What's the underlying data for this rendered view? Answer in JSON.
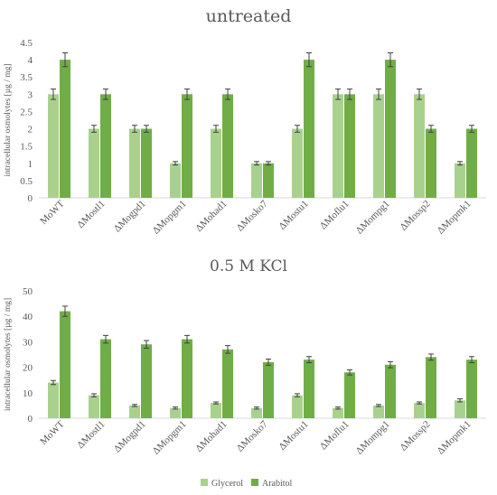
{
  "chart_data": [
    {
      "type": "bar",
      "title": "untreated",
      "ylabel": "intracellular osmolytes [µg / mg]",
      "ylim": [
        0,
        4.5
      ],
      "yticks": [
        "0",
        "0.5",
        "1",
        "1.5",
        "2",
        "2.5",
        "3",
        "3.5",
        "4",
        "4.5"
      ],
      "categories": [
        "MoWT",
        "ΔMostl1",
        "ΔMogpd1",
        "ΔMopgm1",
        "ΔMohad1",
        "ΔMosko7",
        "ΔMostu1",
        "ΔMoflu1",
        "ΔMompg1",
        "ΔMossp2",
        "ΔMopmk1"
      ],
      "series": [
        {
          "name": "Glycerol",
          "color": "#a9d18e",
          "values": [
            3,
            2,
            2,
            1,
            2,
            1,
            2,
            3,
            3,
            3,
            1
          ],
          "errors": [
            0.15,
            0.1,
            0.1,
            0.05,
            0.1,
            0.05,
            0.1,
            0.15,
            0.15,
            0.15,
            0.05
          ]
        },
        {
          "name": "Arabitol",
          "color": "#70ad47",
          "values": [
            4,
            3,
            2,
            3,
            3,
            1,
            4,
            3,
            4,
            2,
            2
          ],
          "errors": [
            0.2,
            0.15,
            0.1,
            0.15,
            0.15,
            0.05,
            0.2,
            0.15,
            0.2,
            0.1,
            0.1
          ]
        }
      ],
      "grid": false
    },
    {
      "type": "bar",
      "title": "0.5 M KCl",
      "ylabel": "intracellular osmolytes [µg / mg]",
      "ylim": [
        0,
        50
      ],
      "yticks": [
        "0",
        "10",
        "20",
        "30",
        "40",
        "50"
      ],
      "categories": [
        "MoWT",
        "ΔMostl1",
        "ΔMogpd1",
        "ΔMopgm1",
        "ΔMohad1",
        "ΔMosko7",
        "ΔMostu1",
        "ΔMoflu1",
        "ΔMompg1",
        "ΔMossp2",
        "ΔMopmk1"
      ],
      "series": [
        {
          "name": "Glycerol",
          "color": "#a9d18e",
          "values": [
            14,
            9,
            5,
            4,
            6,
            4,
            9,
            4,
            5,
            6,
            7
          ],
          "errors": [
            0.8,
            0.6,
            0.4,
            0.4,
            0.4,
            0.4,
            0.6,
            0.4,
            0.4,
            0.4,
            0.6
          ]
        },
        {
          "name": "Arabitol",
          "color": "#70ad47",
          "values": [
            42,
            31,
            29,
            31,
            27,
            22,
            23,
            18,
            21,
            24,
            23
          ],
          "errors": [
            2,
            1.5,
            1.5,
            1.5,
            1.5,
            1.2,
            1.2,
            1.0,
            1.2,
            1.2,
            1.2
          ]
        }
      ],
      "grid": false
    }
  ],
  "legend": {
    "position": "bottom",
    "items": [
      {
        "label": "Glycerol",
        "color": "#a9d18e"
      },
      {
        "label": "Arabitol",
        "color": "#70ad47"
      }
    ]
  }
}
